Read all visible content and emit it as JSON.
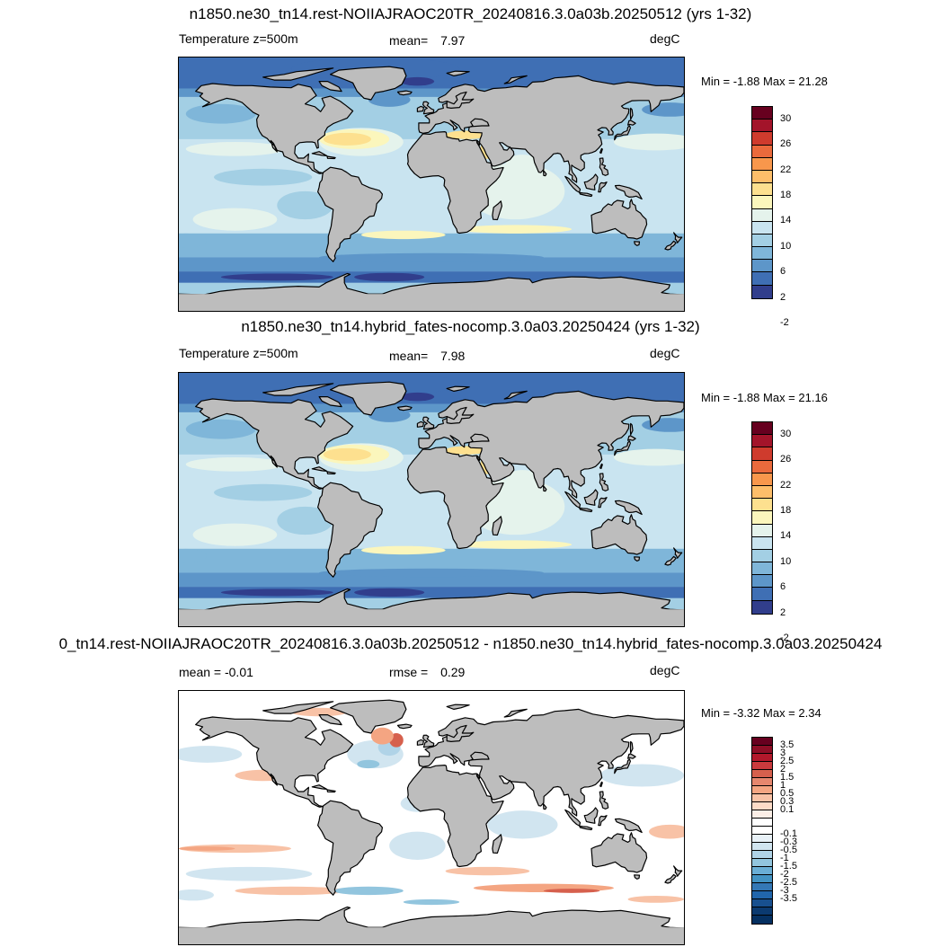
{
  "colors": {
    "land": "#bdbdbd",
    "coast": "#000000"
  },
  "panels": [
    {
      "title": "n1850.ne30_tn14.rest-NOIIAJRAOC20TR_20240816.3.0a03b.20250512 (yrs 1-32)",
      "left_label": "Temperature z=500m",
      "mid_label": "mean=",
      "mid_value": "7.97",
      "units": "degC",
      "minmax": "Min =  -1.88 Max =  21.28",
      "colorbar": {
        "colors": [
          "#67001f",
          "#a3142a",
          "#cf3b2d",
          "#ea6a3c",
          "#f8974c",
          "#fdbe6a",
          "#fde08f",
          "#fbf6bc",
          "#e5f3ec",
          "#c9e4f0",
          "#a3cfe4",
          "#7fb6d9",
          "#5d96c9",
          "#3f6fb4",
          "#313e8c"
        ],
        "labels": [
          "30",
          "26",
          "22",
          "18",
          "14",
          "10",
          "6",
          "2",
          "-2"
        ]
      }
    },
    {
      "title": "n1850.ne30_tn14.hybrid_fates-nocomp.3.0a03.20250424 (yrs 1-32)",
      "left_label": "Temperature z=500m",
      "mid_label": "mean=",
      "mid_value": "7.98",
      "units": "degC",
      "minmax": "Min =  -1.88 Max =  21.16",
      "colorbar": {
        "colors": [
          "#67001f",
          "#a3142a",
          "#cf3b2d",
          "#ea6a3c",
          "#f8974c",
          "#fdbe6a",
          "#fde08f",
          "#fbf6bc",
          "#e5f3ec",
          "#c9e4f0",
          "#a3cfe4",
          "#7fb6d9",
          "#5d96c9",
          "#3f6fb4",
          "#313e8c"
        ],
        "labels": [
          "30",
          "26",
          "22",
          "18",
          "14",
          "10",
          "6",
          "2",
          "-2"
        ]
      }
    },
    {
      "title": "0_tn14.rest-NOIIAJRAOC20TR_20240816.3.0a03b.20250512 - n1850.ne30_tn14.hybrid_fates-nocomp.3.0a03.20250424",
      "left_label": "mean =  -0.01",
      "mid_label": "rmse =",
      "mid_value": "0.29",
      "units": "degC",
      "minmax": "Min =  -3.32 Max =   2.34",
      "colorbar": {
        "colors": [
          "#67001f",
          "#8e0e26",
          "#b2182b",
          "#c93a3d",
          "#d6604d",
          "#e6876e",
          "#f4a582",
          "#f8c2a6",
          "#fddbc7",
          "#fbeee6",
          "#ffffff",
          "#ffffff",
          "#e8f1f7",
          "#d1e5f0",
          "#b0d3e7",
          "#92c5de",
          "#6aaed5",
          "#4393c3",
          "#3478b6",
          "#2166ac",
          "#18508f",
          "#0b3a70",
          "#053061"
        ],
        "labels": [
          "3.5",
          "3",
          "2.5",
          "2",
          "1.5",
          "1",
          "0.5",
          "0.3",
          "0.1",
          "-0.1",
          "-0.3",
          "-0.5",
          "-1",
          "-1.5",
          "-2",
          "-2.5",
          "-3",
          "-3.5"
        ]
      }
    }
  ]
}
